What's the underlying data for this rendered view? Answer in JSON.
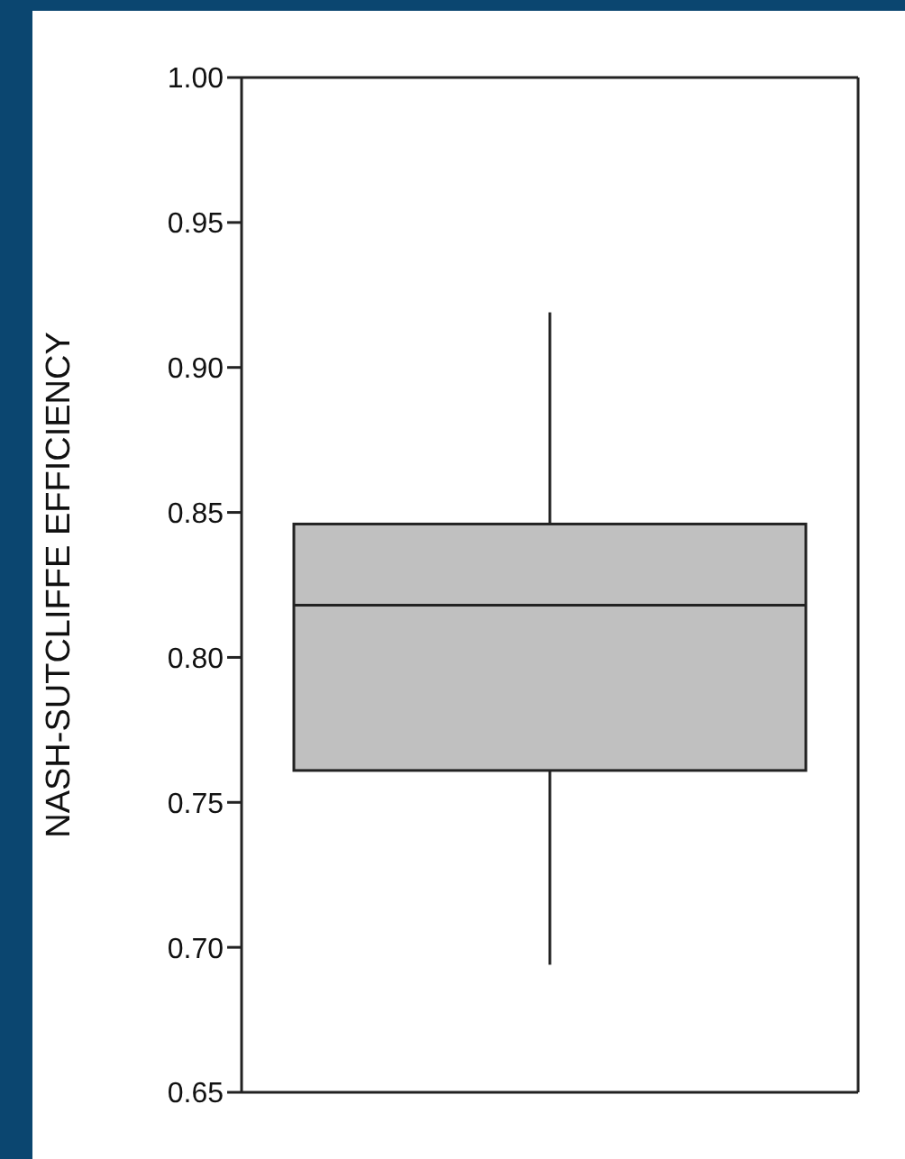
{
  "chart_data": {
    "type": "box",
    "ylabel": "NASH-SUTCLIFFE EFFICIENCY",
    "categories": [
      null
    ],
    "series": [
      {
        "color": "#c0c0c0",
        "boxes": [
          {
            "low": 0.694,
            "q1": 0.761,
            "median": 0.818,
            "q3": 0.846,
            "high": 0.919
          }
        ]
      }
    ],
    "ylim": [
      0.65,
      1.0
    ],
    "yticks": [
      0.65,
      {
        "value": 0.7,
        "label": "0.70"
      },
      0.75,
      {
        "value": 0.8,
        "label": "0.80"
      },
      0.85,
      {
        "value": 0.9,
        "label": "0.90"
      },
      0.95,
      {
        "value": 1.0,
        "label": "1.00"
      }
    ],
    "grid": false,
    "legend": false
  }
}
